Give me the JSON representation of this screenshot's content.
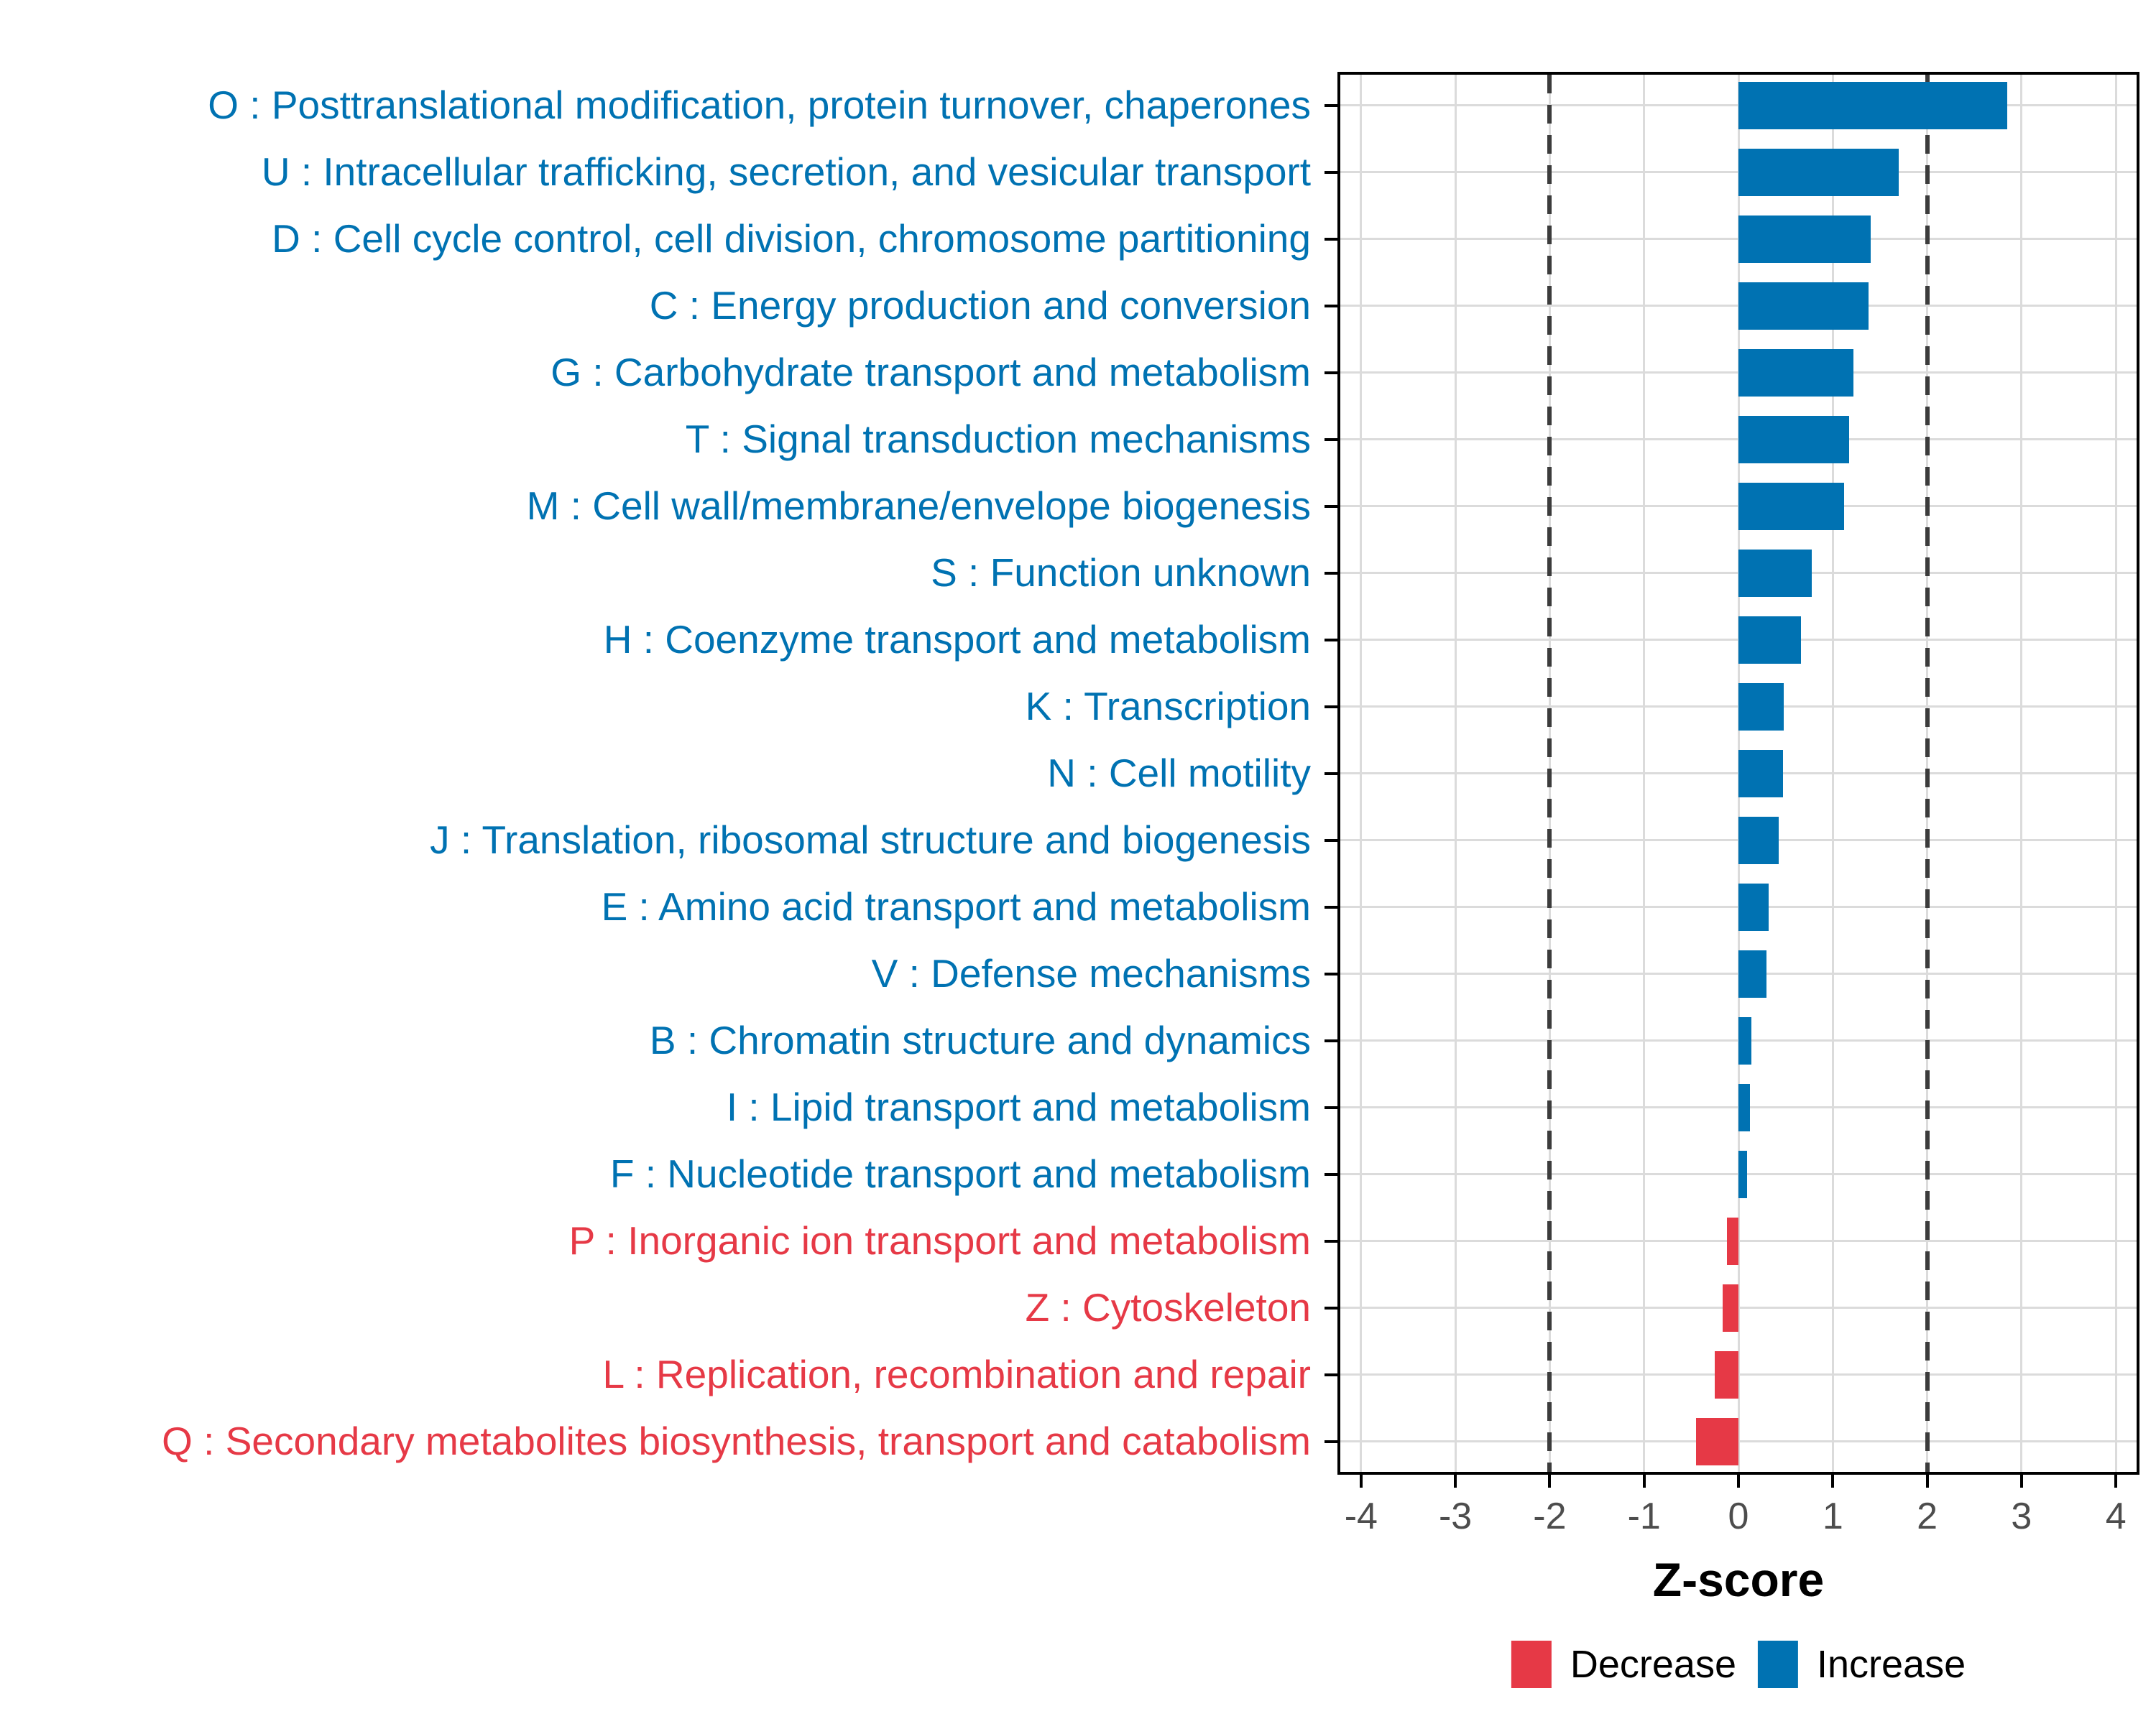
{
  "chart_data": {
    "type": "bar",
    "orientation": "horizontal",
    "title": "",
    "xlabel": "Z-score",
    "ylabel": "",
    "xlim": [
      -4.25,
      4.25
    ],
    "x_ticks": [
      -4,
      -3,
      -2,
      -1,
      0,
      1,
      2,
      3,
      4
    ],
    "reference_lines_dashed": [
      -2,
      2
    ],
    "grid": "major gridlines only: vertical at each integer, horizontal at each category center",
    "legend_position": "bottom",
    "categories": [
      "O : Posttranslational modification, protein turnover, chaperones",
      "U : Intracellular trafficking, secretion, and vesicular transport",
      "D : Cell cycle control, cell division, chromosome partitioning",
      "C : Energy production and conversion",
      "G : Carbohydrate transport and metabolism",
      "T : Signal transduction mechanisms",
      "M : Cell wall/membrane/envelope biogenesis",
      "S : Function unknown",
      "H : Coenzyme transport and metabolism",
      "K : Transcription",
      "N : Cell motility",
      "J : Translation, ribosomal structure and biogenesis",
      "E : Amino acid transport and metabolism",
      "V : Defense mechanisms",
      "B : Chromatin structure and dynamics",
      "I : Lipid transport and metabolism",
      "F : Nucleotide transport and metabolism",
      "P : Inorganic ion transport and metabolism",
      "Z : Cytoskeleton",
      "L : Replication, recombination and repair",
      "Q : Secondary metabolites biosynthesis, transport and catabolism"
    ],
    "values": [
      2.85,
      1.7,
      1.4,
      1.38,
      1.22,
      1.17,
      1.12,
      0.78,
      0.66,
      0.48,
      0.47,
      0.43,
      0.32,
      0.3,
      0.14,
      0.12,
      0.09,
      -0.12,
      -0.17,
      -0.25,
      -0.45
    ],
    "direction": [
      "Increase",
      "Increase",
      "Increase",
      "Increase",
      "Increase",
      "Increase",
      "Increase",
      "Increase",
      "Increase",
      "Increase",
      "Increase",
      "Increase",
      "Increase",
      "Increase",
      "Increase",
      "Increase",
      "Increase",
      "Decrease",
      "Decrease",
      "Decrease",
      "Decrease"
    ]
  },
  "legend": {
    "decrease_label": "Decrease",
    "increase_label": "Increase"
  },
  "axis": {
    "xlabel": "Z-score"
  },
  "colors": {
    "increase": "#0072B2",
    "decrease": "#E63946",
    "grid": "#DBDBDB",
    "reference_line": "#3C3C3C",
    "axis_text": "#4D4D4D",
    "panel_border": "#000000",
    "background": "#FFFFFF"
  }
}
